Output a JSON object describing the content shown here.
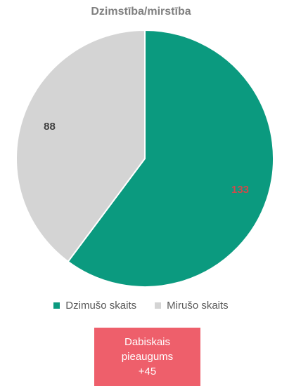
{
  "chart_data": {
    "type": "pie",
    "title": "Dzimstība/mirstība",
    "categories": [
      "Dzimušo skaits",
      "Mirušo skaits"
    ],
    "values": [
      133,
      88
    ],
    "data_labels": [
      "133",
      "88"
    ],
    "colors": [
      "#0b9a7f",
      "#d4d4d4"
    ],
    "label_colors": [
      "#cf4a4a",
      "#404040"
    ],
    "legend_position": "bottom"
  },
  "legend": {
    "items": [
      {
        "label": "Dzimušo skaits",
        "color": "#0b9a7f"
      },
      {
        "label": "Mirušo skaits",
        "color": "#d4d4d4"
      }
    ]
  },
  "badge": {
    "line1": "Dabiskais",
    "line2": "pieaugums",
    "line3": "+45",
    "color": "#ee5f6b"
  }
}
